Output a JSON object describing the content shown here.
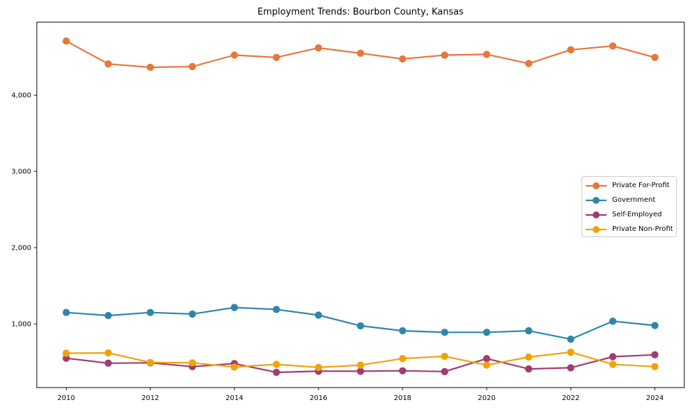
{
  "chart_data": {
    "type": "line",
    "title": "Employment Trends: Bourbon County, Kansas",
    "xlabel": "",
    "ylabel": "",
    "x": [
      2010,
      2011,
      2012,
      2013,
      2014,
      2015,
      2016,
      2017,
      2018,
      2019,
      2020,
      2021,
      2022,
      2023,
      2024
    ],
    "series": [
      {
        "name": "Private For-Profit",
        "color": "#E8763B",
        "values": [
          4710,
          4410,
          4365,
          4375,
          4525,
          4495,
          4620,
          4550,
          4475,
          4525,
          4535,
          4415,
          4595,
          4645,
          4495
        ]
      },
      {
        "name": "Government",
        "color": "#2E86AB",
        "values": [
          1150,
          1110,
          1150,
          1130,
          1215,
          1190,
          1115,
          975,
          910,
          890,
          890,
          910,
          800,
          1035,
          980
        ]
      },
      {
        "name": "Self-Employed",
        "color": "#A23B72",
        "values": [
          550,
          485,
          490,
          440,
          480,
          365,
          380,
          380,
          385,
          375,
          545,
          410,
          425,
          570,
          595
        ]
      },
      {
        "name": "Private Non-Profit",
        "color": "#F1A208",
        "values": [
          615,
          620,
          495,
          490,
          435,
          470,
          430,
          460,
          545,
          575,
          460,
          565,
          630,
          470,
          440
        ]
      }
    ],
    "x_ticks": {
      "values": [
        2010,
        2012,
        2014,
        2016,
        2018,
        2020,
        2022,
        2024
      ],
      "labels": [
        "2010",
        "2012",
        "2014",
        "2016",
        "2018",
        "2020",
        "2022",
        "2024"
      ]
    },
    "y_ticks": {
      "values": [
        1000,
        2000,
        3000,
        4000
      ],
      "labels": [
        "1,000",
        "2,000",
        "3,000",
        "4,000"
      ]
    },
    "xlim": [
      2009.3,
      2024.7
    ],
    "ylim": [
      165,
      4957
    ],
    "grid": false,
    "legend_position": "center-right",
    "axis_color": "#000000",
    "background_color": "#ffffff"
  }
}
